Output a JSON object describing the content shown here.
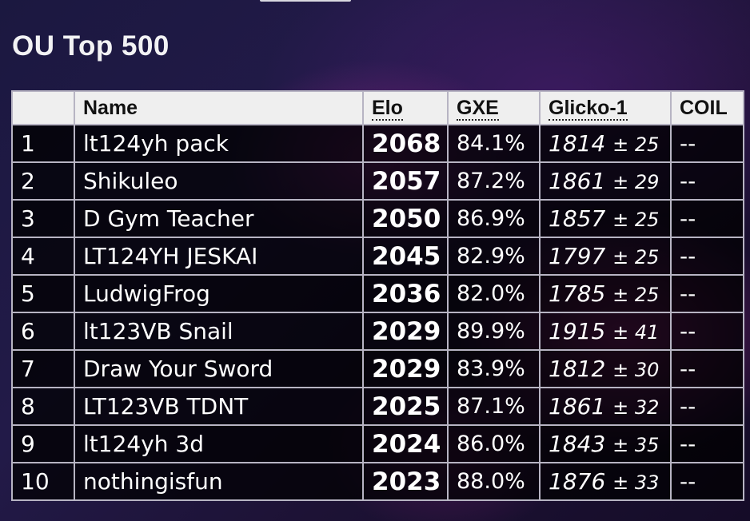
{
  "page": {
    "title": "OU Top 500"
  },
  "table": {
    "headers": {
      "rank": "",
      "name": "Name",
      "elo": "Elo",
      "gxe": "GXE",
      "glicko": "Glicko-1",
      "coil": "COIL"
    },
    "rows": [
      {
        "rank": "1",
        "name": "lt124yh pack",
        "elo": "2068",
        "gxe": "84.1%",
        "glicko": "1814",
        "glicko_dev": "± 25",
        "coil": "--"
      },
      {
        "rank": "2",
        "name": "Shikuleo",
        "elo": "2057",
        "gxe": "87.2%",
        "glicko": "1861",
        "glicko_dev": "± 29",
        "coil": "--"
      },
      {
        "rank": "3",
        "name": "D Gym Teacher",
        "elo": "2050",
        "gxe": "86.9%",
        "glicko": "1857",
        "glicko_dev": "± 25",
        "coil": "--"
      },
      {
        "rank": "4",
        "name": "LT124YH JESKAI",
        "elo": "2045",
        "gxe": "82.9%",
        "glicko": "1797",
        "glicko_dev": "± 25",
        "coil": "--"
      },
      {
        "rank": "5",
        "name": "LudwigFrog",
        "elo": "2036",
        "gxe": "82.0%",
        "glicko": "1785",
        "glicko_dev": "± 25",
        "coil": "--"
      },
      {
        "rank": "6",
        "name": "lt123VB Snail",
        "elo": "2029",
        "gxe": "89.9%",
        "glicko": "1915",
        "glicko_dev": "± 41",
        "coil": "--"
      },
      {
        "rank": "7",
        "name": "Draw Your Sword",
        "elo": "2029",
        "gxe": "83.9%",
        "glicko": "1812",
        "glicko_dev": "± 30",
        "coil": "--"
      },
      {
        "rank": "8",
        "name": "LT123VB TDNT",
        "elo": "2025",
        "gxe": "87.1%",
        "glicko": "1861",
        "glicko_dev": "± 32",
        "coil": "--"
      },
      {
        "rank": "9",
        "name": "lt124yh 3d",
        "elo": "2024",
        "gxe": "86.0%",
        "glicko": "1843",
        "glicko_dev": "± 35",
        "coil": "--"
      },
      {
        "rank": "10",
        "name": "nothingisfun",
        "elo": "2023",
        "gxe": "88.0%",
        "glicko": "1876",
        "glicko_dev": "± 33",
        "coil": "--"
      }
    ]
  }
}
